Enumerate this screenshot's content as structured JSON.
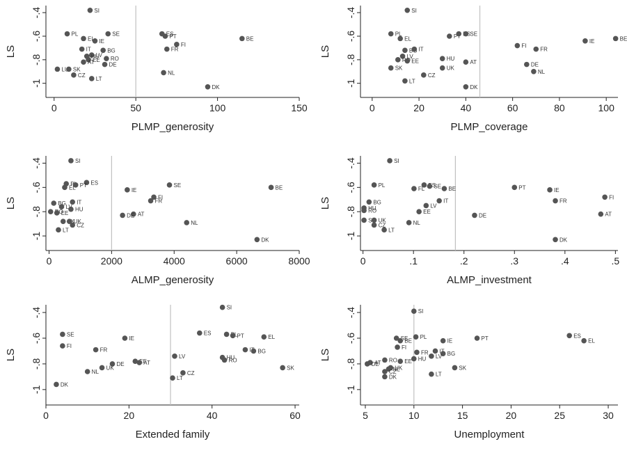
{
  "figure": {
    "accent_point_color": "#555555",
    "ref_line_color": "#c0c0c0",
    "axis_color": "#222222"
  },
  "chart_data": [
    {
      "type": "scatter",
      "xlabel": "PLMP_generosity",
      "ylabel": "LS",
      "xlim": [
        -5,
        150
      ],
      "ylim": [
        -1.12,
        -0.34
      ],
      "xticks": [
        0,
        50,
        100,
        150
      ],
      "yticks": [
        -0.4,
        -0.6,
        -0.8,
        -1
      ],
      "ytick_labels": [
        "-.4",
        "-.6",
        "-.8",
        "-1"
      ],
      "ref_x": 50,
      "points": [
        {
          "label": "SI",
          "x": 22,
          "y": -0.38
        },
        {
          "label": "PL",
          "x": 8,
          "y": -0.58
        },
        {
          "label": "EL",
          "x": 18,
          "y": -0.62
        },
        {
          "label": "IE",
          "x": 25,
          "y": -0.64
        },
        {
          "label": "SE",
          "x": 33,
          "y": -0.58
        },
        {
          "label": "ES",
          "x": 66,
          "y": -0.58
        },
        {
          "label": "PT",
          "x": 68,
          "y": -0.6
        },
        {
          "label": "BE",
          "x": 115,
          "y": -0.62
        },
        {
          "label": "FI",
          "x": 75,
          "y": -0.67
        },
        {
          "label": "FR",
          "x": 69,
          "y": -0.71
        },
        {
          "label": "IT",
          "x": 17,
          "y": -0.71
        },
        {
          "label": "BG",
          "x": 30,
          "y": -0.72
        },
        {
          "label": "LV",
          "x": 23,
          "y": -0.76
        },
        {
          "label": "HU",
          "x": 20,
          "y": -0.77
        },
        {
          "label": "RO",
          "x": 32,
          "y": -0.79
        },
        {
          "label": "EE",
          "x": 21,
          "y": -0.8
        },
        {
          "label": "AT",
          "x": 18,
          "y": -0.82
        },
        {
          "label": "DE",
          "x": 31,
          "y": -0.84
        },
        {
          "label": "LU",
          "x": 2,
          "y": -0.88
        },
        {
          "label": "SK",
          "x": 9,
          "y": -0.88
        },
        {
          "label": "NL",
          "x": 67,
          "y": -0.91
        },
        {
          "label": "CZ",
          "x": 12,
          "y": -0.93
        },
        {
          "label": "LT",
          "x": 23,
          "y": -0.96
        },
        {
          "label": "DK",
          "x": 94,
          "y": -1.03
        }
      ]
    },
    {
      "type": "scatter",
      "xlabel": "PLMP_coverage",
      "ylabel": "LS",
      "xlim": [
        -5,
        105
      ],
      "ylim": [
        -1.12,
        -0.34
      ],
      "xticks": [
        0,
        20,
        40,
        60,
        80,
        100
      ],
      "yticks": [
        -0.4,
        -0.6,
        -0.8,
        -1
      ],
      "ytick_labels": [
        "-.4",
        "-.6",
        "-.8",
        "-1"
      ],
      "ref_x": 46,
      "points": [
        {
          "label": "SI",
          "x": 15,
          "y": -0.38
        },
        {
          "label": "PL",
          "x": 8,
          "y": -0.58
        },
        {
          "label": "EL",
          "x": 12,
          "y": -0.62
        },
        {
          "label": "PT",
          "x": 33,
          "y": -0.6
        },
        {
          "label": "ES",
          "x": 37,
          "y": -0.58
        },
        {
          "label": "SE",
          "x": 40,
          "y": -0.58
        },
        {
          "label": "IE",
          "x": 91,
          "y": -0.64
        },
        {
          "label": "BE",
          "x": 104,
          "y": -0.62
        },
        {
          "label": "FI",
          "x": 62,
          "y": -0.68
        },
        {
          "label": "FR",
          "x": 70,
          "y": -0.71
        },
        {
          "label": "BG",
          "x": 14,
          "y": -0.72
        },
        {
          "label": "IT",
          "x": 18,
          "y": -0.71
        },
        {
          "label": "LV",
          "x": 13,
          "y": -0.77
        },
        {
          "label": "HU",
          "x": 30,
          "y": -0.79
        },
        {
          "label": "RO",
          "x": 11,
          "y": -0.8
        },
        {
          "label": "EE",
          "x": 15,
          "y": -0.81
        },
        {
          "label": "AT",
          "x": 40,
          "y": -0.82
        },
        {
          "label": "DE",
          "x": 66,
          "y": -0.84
        },
        {
          "label": "SK",
          "x": 8,
          "y": -0.87
        },
        {
          "label": "UK",
          "x": 30,
          "y": -0.87
        },
        {
          "label": "NL",
          "x": 69,
          "y": -0.9
        },
        {
          "label": "CZ",
          "x": 22,
          "y": -0.93
        },
        {
          "label": "LT",
          "x": 14,
          "y": -0.98
        },
        {
          "label": "DK",
          "x": 40,
          "y": -1.03
        }
      ]
    },
    {
      "type": "scatter",
      "xlabel": "ALMP_generosity",
      "ylabel": "LS",
      "xlim": [
        -100,
        8000
      ],
      "ylim": [
        -1.12,
        -0.34
      ],
      "xticks": [
        0,
        2000,
        4000,
        6000,
        8000
      ],
      "yticks": [
        -0.4,
        -0.6,
        -0.8,
        -1
      ],
      "ytick_labels": [
        "-.4",
        "-.6",
        "-.8",
        "-1"
      ],
      "ref_x": 2000,
      "points": [
        {
          "label": "SI",
          "x": 700,
          "y": -0.38
        },
        {
          "label": "PL",
          "x": 550,
          "y": -0.57
        },
        {
          "label": "ES",
          "x": 1200,
          "y": -0.56
        },
        {
          "label": "PT",
          "x": 850,
          "y": -0.58
        },
        {
          "label": "EL",
          "x": 500,
          "y": -0.6
        },
        {
          "label": "SE",
          "x": 3850,
          "y": -0.58
        },
        {
          "label": "IE",
          "x": 2500,
          "y": -0.62
        },
        {
          "label": "BE",
          "x": 7100,
          "y": -0.6
        },
        {
          "label": "FI",
          "x": 3350,
          "y": -0.68
        },
        {
          "label": "FR",
          "x": 3250,
          "y": -0.71
        },
        {
          "label": "BG",
          "x": 150,
          "y": -0.73
        },
        {
          "label": "IT",
          "x": 750,
          "y": -0.72
        },
        {
          "label": "LV",
          "x": 400,
          "y": -0.76
        },
        {
          "label": "HU",
          "x": 700,
          "y": -0.78
        },
        {
          "label": "RO",
          "x": 50,
          "y": -0.8
        },
        {
          "label": "EE",
          "x": 250,
          "y": -0.81
        },
        {
          "label": "AT",
          "x": 2700,
          "y": -0.82
        },
        {
          "label": "DE",
          "x": 2350,
          "y": -0.83
        },
        {
          "label": "SK",
          "x": 450,
          "y": -0.88
        },
        {
          "label": "UK",
          "x": 650,
          "y": -0.88
        },
        {
          "label": "NL",
          "x": 4400,
          "y": -0.89
        },
        {
          "label": "CZ",
          "x": 750,
          "y": -0.91
        },
        {
          "label": "LT",
          "x": 300,
          "y": -0.95
        },
        {
          "label": "DK",
          "x": 6650,
          "y": -1.03
        }
      ]
    },
    {
      "type": "scatter",
      "xlabel": "ALMP_investment",
      "ylabel": "LS",
      "xlim": [
        -0.005,
        0.505
      ],
      "ylim": [
        -1.12,
        -0.34
      ],
      "xticks": [
        0,
        0.1,
        0.2,
        0.3,
        0.4,
        0.5
      ],
      "yticks": [
        -0.4,
        -0.6,
        -0.8,
        -1
      ],
      "xtick_labels": [
        "0",
        ".1",
        ".2",
        ".3",
        ".4",
        ".5"
      ],
      "ytick_labels": [
        "-.4",
        "-.6",
        "-.8",
        "-1"
      ],
      "ref_x": 0.183,
      "points": [
        {
          "label": "SI",
          "x": 0.053,
          "y": -0.38
        },
        {
          "label": "PL",
          "x": 0.022,
          "y": -0.58
        },
        {
          "label": "FL",
          "x": 0.101,
          "y": -0.61
        },
        {
          "label": "ES",
          "x": 0.121,
          "y": -0.58
        },
        {
          "label": "SE",
          "x": 0.132,
          "y": -0.59
        },
        {
          "label": "BE",
          "x": 0.161,
          "y": -0.61
        },
        {
          "label": "PT",
          "x": 0.3,
          "y": -0.6
        },
        {
          "label": "IE",
          "x": 0.37,
          "y": -0.62
        },
        {
          "label": "FI",
          "x": 0.479,
          "y": -0.68
        },
        {
          "label": "FR",
          "x": 0.381,
          "y": -0.71
        },
        {
          "label": "BG",
          "x": 0.012,
          "y": -0.72
        },
        {
          "label": "IT",
          "x": 0.151,
          "y": -0.71
        },
        {
          "label": "LV",
          "x": 0.125,
          "y": -0.75
        },
        {
          "label": "HU",
          "x": 0.002,
          "y": -0.77
        },
        {
          "label": "RO",
          "x": 0.002,
          "y": -0.79
        },
        {
          "label": "EE",
          "x": 0.111,
          "y": -0.8
        },
        {
          "label": "DE",
          "x": 0.221,
          "y": -0.83
        },
        {
          "label": "AT",
          "x": 0.471,
          "y": -0.82
        },
        {
          "label": "SK",
          "x": 0.002,
          "y": -0.87
        },
        {
          "label": "UK",
          "x": 0.022,
          "y": -0.87
        },
        {
          "label": "NL",
          "x": 0.091,
          "y": -0.89
        },
        {
          "label": "CZ",
          "x": 0.022,
          "y": -0.91
        },
        {
          "label": "LT",
          "x": 0.042,
          "y": -0.95
        },
        {
          "label": "DK",
          "x": 0.381,
          "y": -1.03
        }
      ]
    },
    {
      "type": "scatter",
      "xlabel": "Extended family",
      "ylabel": "LS",
      "xlim": [
        0,
        61
      ],
      "ylim": [
        -1.12,
        -0.34
      ],
      "xticks": [
        0,
        20,
        40,
        60
      ],
      "yticks": [
        -0.4,
        -0.6,
        -0.8,
        -1
      ],
      "ytick_labels": [
        "-.4",
        "-.6",
        "-.8",
        "-1"
      ],
      "ref_x": 30,
      "points": [
        {
          "label": "SI",
          "x": 42.5,
          "y": -0.36
        },
        {
          "label": "SE",
          "x": 4,
          "y": -0.57
        },
        {
          "label": "ES",
          "x": 37,
          "y": -0.56
        },
        {
          "label": "PL",
          "x": 43.5,
          "y": -0.57
        },
        {
          "label": "PT",
          "x": 45,
          "y": -0.58
        },
        {
          "label": "EL",
          "x": 52.5,
          "y": -0.59
        },
        {
          "label": "IE",
          "x": 19,
          "y": -0.6
        },
        {
          "label": "FI",
          "x": 4,
          "y": -0.66
        },
        {
          "label": "FR",
          "x": 12,
          "y": -0.69
        },
        {
          "label": "IT",
          "x": 48,
          "y": -0.69
        },
        {
          "label": "BG",
          "x": 50,
          "y": -0.7
        },
        {
          "label": "LV",
          "x": 31,
          "y": -0.74
        },
        {
          "label": "HU",
          "x": 42.5,
          "y": -0.75
        },
        {
          "label": "RO",
          "x": 43,
          "y": -0.77
        },
        {
          "label": "EE",
          "x": 21.5,
          "y": -0.78
        },
        {
          "label": "AT",
          "x": 22.5,
          "y": -0.79
        },
        {
          "label": "DE",
          "x": 16,
          "y": -0.8
        },
        {
          "label": "UK",
          "x": 13.5,
          "y": -0.83
        },
        {
          "label": "NL",
          "x": 10,
          "y": -0.86
        },
        {
          "label": "SK",
          "x": 57,
          "y": -0.83
        },
        {
          "label": "CZ",
          "x": 33,
          "y": -0.87
        },
        {
          "label": "LT",
          "x": 30.5,
          "y": -0.91
        },
        {
          "label": "DK",
          "x": 2.5,
          "y": -0.96
        }
      ]
    },
    {
      "type": "scatter",
      "xlabel": "Unemployment",
      "ylabel": "LS",
      "xlim": [
        4.5,
        31
      ],
      "ylim": [
        -1.12,
        -0.34
      ],
      "xticks": [
        5,
        10,
        15,
        20,
        25,
        30
      ],
      "yticks": [
        -0.4,
        -0.6,
        -0.8,
        -1
      ],
      "ytick_labels": [
        "-.4",
        "-.6",
        "-.8",
        "-1"
      ],
      "ref_x": 10,
      "points": [
        {
          "label": "SI",
          "x": 10,
          "y": -0.39
        },
        {
          "label": "PL",
          "x": 10.2,
          "y": -0.59
        },
        {
          "label": "SE",
          "x": 8.2,
          "y": -0.6
        },
        {
          "label": "BE",
          "x": 8.6,
          "y": -0.62
        },
        {
          "label": "IE",
          "x": 13,
          "y": -0.62
        },
        {
          "label": "PT",
          "x": 16.5,
          "y": -0.6
        },
        {
          "label": "ES",
          "x": 26,
          "y": -0.58
        },
        {
          "label": "EL",
          "x": 27.5,
          "y": -0.62
        },
        {
          "label": "FI",
          "x": 8.3,
          "y": -0.67
        },
        {
          "label": "FR",
          "x": 10.3,
          "y": -0.71
        },
        {
          "label": "IT",
          "x": 12.2,
          "y": -0.7
        },
        {
          "label": "BG",
          "x": 13,
          "y": -0.72
        },
        {
          "label": "LV",
          "x": 11.8,
          "y": -0.74
        },
        {
          "label": "HU",
          "x": 10,
          "y": -0.76
        },
        {
          "label": "RO",
          "x": 7,
          "y": -0.77
        },
        {
          "label": "EE",
          "x": 8.6,
          "y": -0.78
        },
        {
          "label": "AT",
          "x": 5.5,
          "y": -0.79
        },
        {
          "label": "DE",
          "x": 5.2,
          "y": -0.8
        },
        {
          "label": "UK",
          "x": 7.6,
          "y": -0.83
        },
        {
          "label": "NL",
          "x": 7.4,
          "y": -0.84
        },
        {
          "label": "CZ",
          "x": 7,
          "y": -0.86
        },
        {
          "label": "SK",
          "x": 14.2,
          "y": -0.83
        },
        {
          "label": "LT",
          "x": 11.8,
          "y": -0.88
        },
        {
          "label": "DK",
          "x": 7,
          "y": -0.9
        }
      ]
    }
  ]
}
